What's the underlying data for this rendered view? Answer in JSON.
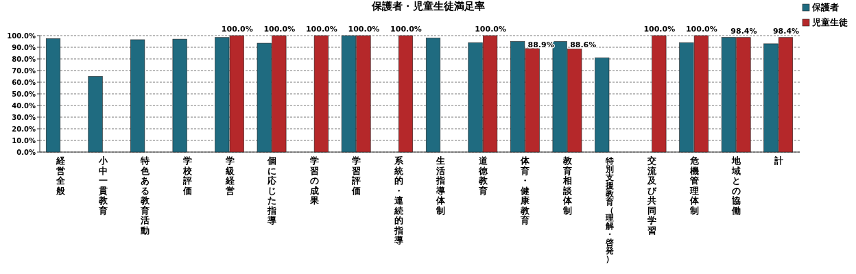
{
  "chart_data": {
    "type": "bar",
    "title": "保護者・児童生徒満足率",
    "categories": [
      "経営全般",
      "小中一貫教育",
      "特色ある教育活動",
      "学校評価",
      "学級経営",
      "個に応じた指導",
      "学習の成果",
      "学習評価",
      "系統的・連続的指導",
      "生活指導体制",
      "道徳教育",
      "体育・健康教育",
      "教育相談体制",
      "特別支援教育（理解・啓発）",
      "交流及び共同学習",
      "危機管理体制",
      "地域との協働",
      "計"
    ],
    "series": [
      {
        "name": "保護者",
        "color": "#1f6b80",
        "values": [
          97.5,
          65,
          96.5,
          97,
          98.4,
          93.5,
          null,
          100,
          null,
          98,
          94,
          95,
          95,
          81,
          null,
          94,
          98.5,
          93
        ]
      },
      {
        "name": "児童生徒",
        "color": "#b5282a",
        "values": [
          null,
          null,
          null,
          null,
          100,
          100,
          100,
          100,
          100,
          null,
          100,
          88.9,
          88.6,
          null,
          100,
          100,
          98.4,
          98.4
        ],
        "value_labels": [
          null,
          null,
          null,
          null,
          "100.0%",
          "100.0%",
          "100.0%",
          "100.0%",
          "100.0%",
          null,
          "100.0%",
          "88.9%",
          "88.6%",
          null,
          "100.0%",
          "100.0%",
          "98.4%",
          "98.4%"
        ]
      }
    ],
    "ylim": [
      0,
      100
    ],
    "yticks": [
      {
        "value": 0,
        "label": "0.0%"
      },
      {
        "value": 10,
        "label": "10.0%"
      },
      {
        "value": 20,
        "label": "20.0%"
      },
      {
        "value": 30,
        "label": "30.0%"
      },
      {
        "value": 40,
        "label": "40.0%"
      },
      {
        "value": 50,
        "label": "50.0%"
      },
      {
        "value": 60,
        "label": "60.0%"
      },
      {
        "value": 70,
        "label": "70.0%"
      },
      {
        "value": 80,
        "label": "80.0%"
      },
      {
        "value": 90,
        "label": "90.0%"
      },
      {
        "value": 100,
        "label": "100.0%"
      }
    ],
    "grid": "y",
    "legend": "top right"
  }
}
